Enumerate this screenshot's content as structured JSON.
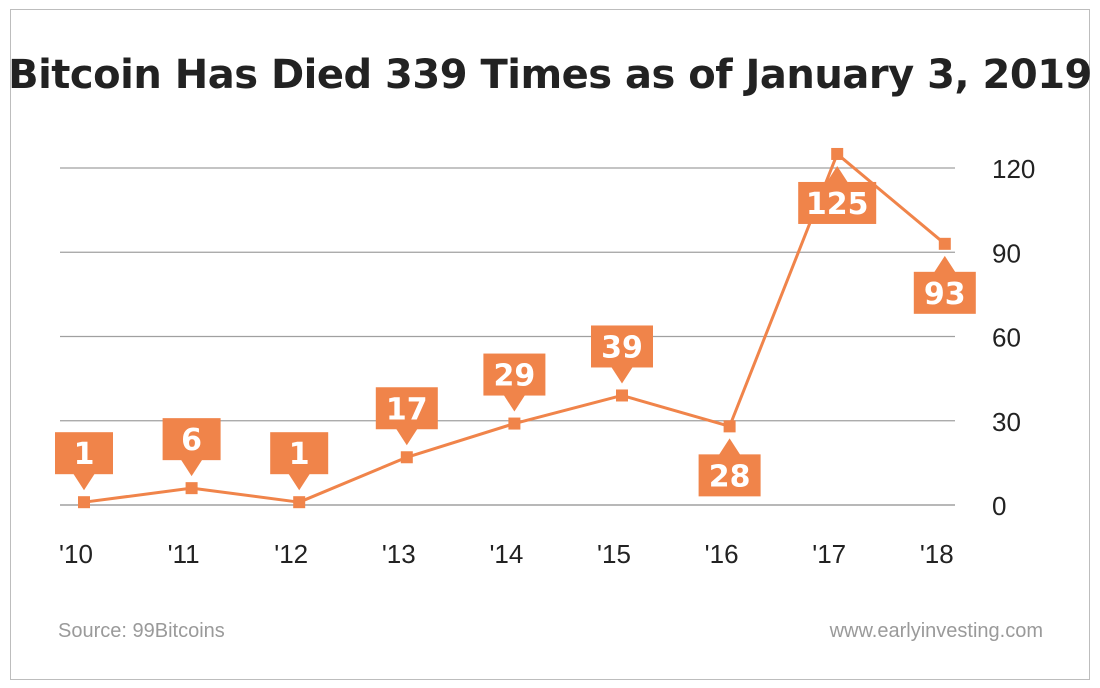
{
  "chart_data": {
    "type": "line",
    "title": "Bitcoin Has Died 339 Times as of January 3, 2019",
    "categories": [
      "'10",
      "'11",
      "'12",
      "'13",
      "'14",
      "'15",
      "'16",
      "'17",
      "'18"
    ],
    "values": [
      1,
      6,
      1,
      17,
      29,
      39,
      28,
      125,
      93
    ],
    "data_labels": [
      "1",
      "6",
      "1",
      "17",
      "29",
      "39",
      "28",
      "125",
      "93"
    ],
    "label_placement": [
      "above",
      "above",
      "above",
      "above",
      "above",
      "above",
      "below",
      "below",
      "below"
    ],
    "ylim": [
      0,
      120
    ],
    "yticks": [
      0,
      30,
      60,
      90,
      120
    ],
    "ytick_labels": [
      "0",
      "30",
      "60",
      "90",
      "120"
    ],
    "y_axis_side": "right",
    "grid": true,
    "xlabel": "",
    "ylabel": ""
  },
  "footer": {
    "source": "Source: 99Bitcoins",
    "website": "www.earlyinvesting.com"
  },
  "colors": {
    "series": "#f0844a",
    "grid": "#a0a0a0",
    "text": "#222222",
    "footer": "#9a9a9a"
  }
}
